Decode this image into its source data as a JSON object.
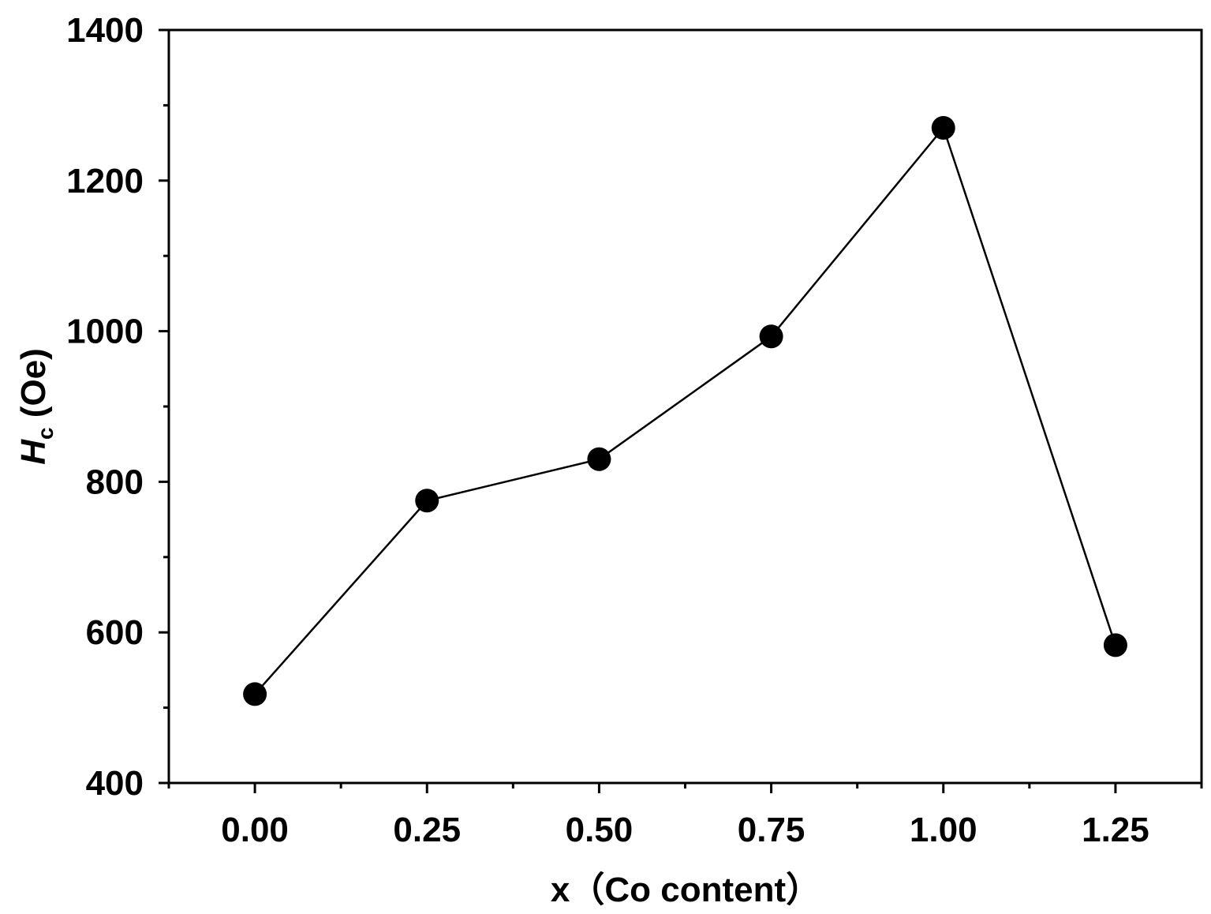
{
  "chart_data": {
    "type": "line",
    "markers": true,
    "x": [
      0.0,
      0.25,
      0.5,
      0.75,
      1.0,
      1.25
    ],
    "series": [
      {
        "values": [
          518,
          775,
          830,
          993,
          1270,
          583
        ]
      }
    ],
    "xlim": [
      -0.125,
      1.375
    ],
    "ylim": [
      400,
      1400
    ],
    "xticks": [
      "0.00",
      "0.25",
      "0.50",
      "0.75",
      "1.00",
      "1.25"
    ],
    "yticks": [
      "400",
      "600",
      "800",
      "1000",
      "1200",
      "1400"
    ],
    "xlabel": "x（Co content）",
    "ylabel_main": "H",
    "ylabel_sub": "c",
    "ylabel_unit": " (Oe)",
    "grid": false,
    "legend": "none",
    "colors": {
      "line": "#000000",
      "marker": "#000000",
      "axis": "#000000"
    }
  }
}
